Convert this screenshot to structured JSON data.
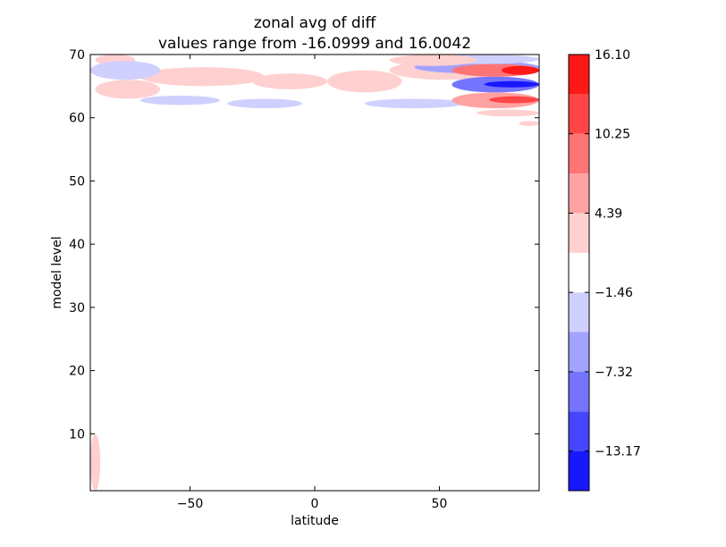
{
  "chart_data": {
    "type": "heatmap",
    "title": "zonal avg of diff",
    "subtitle": "values range from -16.0999 and 16.0042",
    "xlabel": "latitude",
    "ylabel": "model level",
    "xlim": [
      -90,
      90
    ],
    "ylim": [
      1,
      70
    ],
    "xticks": [
      -50,
      0,
      50
    ],
    "yticks": [
      10,
      20,
      30,
      40,
      50,
      60,
      70
    ],
    "grid": false,
    "colorbar": {
      "position": "right",
      "levels": [
        -16.0999,
        -13.17,
        -10.25,
        -7.32,
        -4.39,
        -1.46,
        1.46,
        4.39,
        7.32,
        10.25,
        13.17,
        16.1
      ],
      "colors": [
        "#1818ff",
        "#4646ff",
        "#7474ff",
        "#a2a2ff",
        "#d0d0ff",
        "#ffffff",
        "#ffd0d0",
        "#ffa2a2",
        "#ff7474",
        "#ff4646",
        "#ff1818"
      ],
      "tick_labels": [
        "16.10",
        "10.25",
        "4.39",
        "−1.46",
        "−7.32",
        "−13.17"
      ],
      "tick_values": [
        16.1,
        10.25,
        4.39,
        -1.46,
        -7.32,
        -13.17
      ]
    },
    "features": [
      {
        "lat": [
          -88,
          -62
        ],
        "level": [
          63,
          66
        ],
        "value": 3
      },
      {
        "lat": [
          -70,
          -20
        ],
        "level": [
          65,
          68
        ],
        "value": 3
      },
      {
        "lat": [
          -25,
          5
        ],
        "level": [
          64.5,
          67
        ],
        "value": 2.5
      },
      {
        "lat": [
          5,
          35
        ],
        "level": [
          64,
          67.5
        ],
        "value": 3
      },
      {
        "lat": [
          30,
          75
        ],
        "level": [
          66,
          69
        ],
        "value": 3
      },
      {
        "lat": [
          -88,
          -72
        ],
        "level": [
          68.3,
          70
        ],
        "value": 2.5
      },
      {
        "lat": [
          -90,
          -62
        ],
        "level": [
          66,
          69
        ],
        "value": -4
      },
      {
        "lat": [
          -70,
          -38
        ],
        "level": [
          62,
          63.5
        ],
        "value": -2.5
      },
      {
        "lat": [
          -35,
          -5
        ],
        "level": [
          61.5,
          63
        ],
        "value": -2.5
      },
      {
        "lat": [
          20,
          60
        ],
        "level": [
          61.5,
          63
        ],
        "value": -2.5
      },
      {
        "lat": [
          40,
          90
        ],
        "level": [
          67,
          69
        ],
        "value": -6
      },
      {
        "lat": [
          55,
          90
        ],
        "level": [
          64,
          66.5
        ],
        "value": -10
      },
      {
        "lat": [
          68,
          90
        ],
        "level": [
          64.8,
          65.8
        ],
        "value": -16
      },
      {
        "lat": [
          45,
          90
        ],
        "level": [
          68.5,
          70
        ],
        "value": -3
      },
      {
        "lat": [
          55,
          90
        ],
        "level": [
          66.5,
          68.5
        ],
        "value": 8
      },
      {
        "lat": [
          75,
          90
        ],
        "level": [
          66.8,
          68.2
        ],
        "value": 15
      },
      {
        "lat": [
          55,
          90
        ],
        "level": [
          61.5,
          64
        ],
        "value": 6
      },
      {
        "lat": [
          70,
          90
        ],
        "level": [
          62.3,
          63.4
        ],
        "value": 12
      },
      {
        "lat": [
          30,
          65
        ],
        "level": [
          68.2,
          70
        ],
        "value": 3
      },
      {
        "lat": [
          -90,
          -86
        ],
        "level": [
          1,
          10
        ],
        "value": 2
      },
      {
        "lat": [
          65,
          90
        ],
        "level": [
          60.2,
          61.3
        ],
        "value": 2
      },
      {
        "lat": [
          82,
          90
        ],
        "level": [
          58.7,
          59.5
        ],
        "value": 3
      }
    ]
  }
}
